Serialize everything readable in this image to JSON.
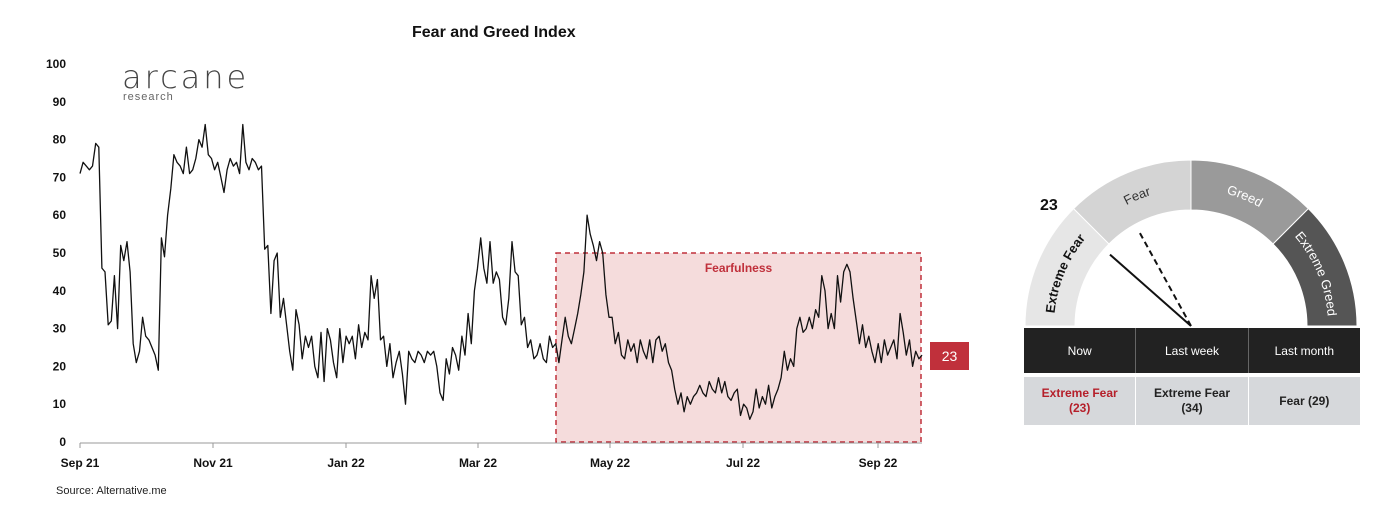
{
  "header": {
    "title": "Fear and Greed Index"
  },
  "logo": {
    "name": "arcane",
    "sub": "research"
  },
  "source": "Source: Alternative.me",
  "chart_data": {
    "type": "line",
    "title": "Fear and Greed Index",
    "xlabel": "",
    "ylabel": "",
    "ylim": [
      0,
      100
    ],
    "yticks": [
      "0",
      "10",
      "20",
      "30",
      "40",
      "50",
      "60",
      "70",
      "80",
      "90",
      "100"
    ],
    "xticks": [
      "Sep 21",
      "Nov 21",
      "Jan 22",
      "Mar 22",
      "May 22",
      "Jul 22",
      "Sep 22"
    ],
    "series": [
      {
        "values": [
          71,
          74,
          73,
          72,
          73,
          79,
          78,
          46,
          45,
          31,
          32,
          44,
          30,
          52,
          48,
          53,
          45,
          26,
          21,
          24,
          33,
          28,
          27,
          25,
          23,
          19,
          54,
          49,
          60,
          67,
          76,
          74,
          73,
          71,
          78,
          71,
          72,
          75,
          80,
          78,
          84,
          76,
          75,
          72,
          74,
          70,
          66,
          72,
          75,
          73,
          74,
          71,
          84,
          74,
          72,
          75,
          74,
          72,
          73,
          51,
          52,
          34,
          48,
          50,
          33,
          38,
          31,
          24,
          19,
          35,
          31,
          22,
          28,
          25,
          28,
          20,
          17,
          29,
          16,
          30,
          27,
          21,
          17,
          30,
          21,
          28,
          26,
          28,
          22,
          31,
          25,
          29,
          27,
          44,
          38,
          43,
          27,
          28,
          20,
          26,
          17,
          21,
          24,
          18,
          10,
          24,
          22,
          21,
          24,
          23,
          21,
          24,
          23,
          24,
          20,
          13,
          11,
          22,
          18,
          25,
          23,
          19,
          28,
          23,
          34,
          26,
          40,
          46,
          54,
          46,
          42,
          53,
          42,
          45,
          43,
          33,
          31,
          38,
          53,
          45,
          44,
          31,
          33,
          25,
          27,
          22,
          23,
          26,
          22,
          21,
          28,
          25,
          26,
          21,
          27,
          33,
          28,
          26,
          30,
          34,
          39,
          45,
          60,
          55,
          52,
          48,
          53,
          50,
          39,
          33,
          33,
          26,
          29,
          23,
          22,
          27,
          24,
          26,
          21,
          27,
          24,
          22,
          27,
          21,
          27,
          28,
          24,
          26,
          21,
          19,
          14,
          10,
          13,
          8,
          12,
          10,
          12,
          13,
          15,
          13,
          12,
          16,
          14,
          13,
          17,
          13,
          16,
          12,
          11,
          13,
          14,
          7,
          10,
          9,
          6,
          8,
          14,
          9,
          12,
          10,
          15,
          9,
          12,
          14,
          17,
          24,
          19,
          22,
          20,
          30,
          33,
          29,
          30,
          33,
          30,
          35,
          33,
          44,
          40,
          30,
          34,
          30,
          44,
          37,
          45,
          47,
          45,
          38,
          32,
          26,
          31,
          25,
          28,
          24,
          21,
          26,
          21,
          27,
          23,
          25,
          27,
          22,
          34,
          29,
          23,
          27,
          20,
          24,
          22,
          23
        ]
      }
    ],
    "annotation": {
      "label": "Fearfulness",
      "range_y": [
        0,
        50
      ]
    },
    "latest_value": "23",
    "gauge": {
      "value": 23,
      "value_label": "23",
      "last_week_value": 34,
      "zones": [
        "Extreme Fear",
        "Fear",
        "Greed",
        "Extreme Greed"
      ]
    }
  },
  "table": {
    "headers": [
      "Now",
      "Last week",
      "Last month"
    ],
    "values": [
      {
        "line1": "Extreme Fear",
        "line2": "(23)"
      },
      {
        "line1": "Extreme Fear",
        "line2": "(34)"
      },
      {
        "line1": "Fear (29)",
        "line2": ""
      }
    ]
  },
  "colors": {
    "line": "#111111",
    "fear_box_fill": "#f5dcdc",
    "fear_box_stroke": "#c0303b",
    "badge": "#c0303b",
    "gauge_extreme_fear": "#e6e6e6",
    "gauge_fear": "#d4d4d4",
    "gauge_greed": "#9a9a9a",
    "gauge_extreme_greed": "#555555"
  }
}
